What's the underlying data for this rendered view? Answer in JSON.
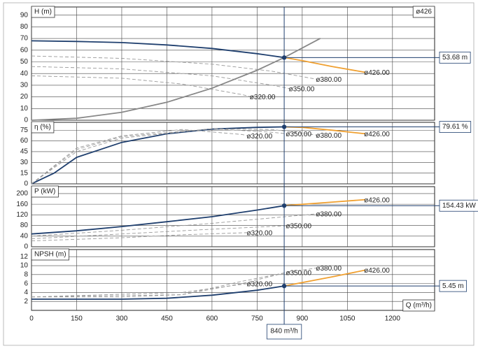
{
  "chart_data": [
    {
      "type": "line",
      "ylabel": "H (m)",
      "corner_label": "ø426",
      "xlim": [
        0,
        1340
      ],
      "ylim": [
        0,
        97
      ],
      "yticks": [
        0,
        10,
        20,
        30,
        40,
        50,
        60,
        70,
        80,
        90
      ],
      "duty": {
        "value": 53.68,
        "label": "53.68 m"
      },
      "series": [
        {
          "color": "#1f3f6e",
          "x": [
            0,
            150,
            300,
            450,
            600,
            750,
            840
          ],
          "values": [
            68,
            67.5,
            66.5,
            64.5,
            61.5,
            57,
            53.68
          ]
        },
        {
          "name": "ø426.00",
          "color": "#f0a030",
          "x": [
            840,
            900,
            1000,
            1110
          ],
          "values": [
            53.68,
            51,
            46,
            41
          ]
        },
        {
          "name": "ø380.00",
          "color": "#999999",
          "dash": true,
          "x": [
            0,
            300,
            600,
            800,
            950
          ],
          "values": [
            55,
            53,
            48,
            42,
            35
          ]
        },
        {
          "name": "ø350.00",
          "color": "#999999",
          "dash": true,
          "x": [
            0,
            300,
            600,
            800,
            860
          ],
          "values": [
            46,
            44,
            38,
            30,
            27
          ]
        },
        {
          "name": "ø320.00",
          "color": "#999999",
          "dash": true,
          "x": [
            0,
            300,
            500,
            700,
            730
          ],
          "values": [
            38,
            36,
            31,
            22,
            20
          ]
        },
        {
          "color": "#888888",
          "x": [
            0,
            150,
            300,
            450,
            600,
            750,
            840,
            960
          ],
          "values": [
            0,
            1.7,
            6.8,
            15.4,
            27.4,
            42.8,
            53.68,
            70.1
          ]
        }
      ]
    },
    {
      "type": "line",
      "ylabel": "η (%)",
      "xlim": [
        0,
        1340
      ],
      "ylim": [
        0,
        86
      ],
      "yticks": [
        0,
        15,
        30,
        45,
        60,
        75
      ],
      "duty": {
        "value": 79.61,
        "label": "79.61 %"
      },
      "series": [
        {
          "color": "#1f3f6e",
          "x": [
            0,
            75,
            150,
            300,
            450,
            600,
            750,
            840
          ],
          "values": [
            0,
            15,
            37,
            58,
            70,
            76.5,
            79,
            79.61
          ]
        },
        {
          "name": "ø426.00",
          "color": "#f0a030",
          "x": [
            840,
            900,
            1000,
            1110
          ],
          "values": [
            79.61,
            79,
            75,
            70
          ]
        },
        {
          "name": "ø380.00",
          "color": "#999999",
          "dash": true,
          "x": [
            0,
            150,
            300,
            600,
            800,
            950
          ],
          "values": [
            0,
            45,
            64,
            77,
            76,
            68
          ]
        },
        {
          "name": "ø350.00",
          "color": "#999999",
          "dash": true,
          "x": [
            0,
            150,
            300,
            600,
            800,
            850
          ],
          "values": [
            0,
            48,
            66,
            77,
            72,
            70
          ]
        },
        {
          "name": "ø320.00",
          "color": "#999999",
          "dash": true,
          "x": [
            0,
            150,
            300,
            500,
            700,
            720
          ],
          "values": [
            0,
            50,
            67,
            76,
            69,
            67
          ]
        }
      ]
    },
    {
      "type": "line",
      "ylabel": "P (kW)",
      "xlim": [
        0,
        1340
      ],
      "ylim": [
        0,
        226
      ],
      "yticks": [
        0,
        40,
        80,
        120,
        160,
        200
      ],
      "duty": {
        "value": 154.43,
        "label": "154.43 kW"
      },
      "series": [
        {
          "color": "#1f3f6e",
          "x": [
            0,
            150,
            300,
            450,
            600,
            750,
            840
          ],
          "values": [
            48,
            60,
            76,
            94,
            113,
            138,
            154.43
          ]
        },
        {
          "name": "ø426.00",
          "color": "#f0a030",
          "x": [
            840,
            1000,
            1110
          ],
          "values": [
            154.43,
            168,
            177
          ]
        },
        {
          "name": "ø380.00",
          "color": "#999999",
          "dash": true,
          "x": [
            0,
            300,
            600,
            950
          ],
          "values": [
            40,
            62,
            88,
            124
          ]
        },
        {
          "name": "ø350.00",
          "color": "#999999",
          "dash": true,
          "x": [
            0,
            300,
            600,
            850
          ],
          "values": [
            30,
            48,
            66,
            79
          ]
        },
        {
          "name": "ø320.00",
          "color": "#999999",
          "dash": true,
          "x": [
            0,
            300,
            500,
            720
          ],
          "values": [
            22,
            34,
            45,
            53
          ]
        }
      ]
    },
    {
      "type": "line",
      "ylabel": "NPSH (m)",
      "xlabel": "Q (m³/h)",
      "xlim": [
        0,
        1340
      ],
      "ylim": [
        0,
        13.6
      ],
      "yticks": [
        2,
        4,
        6,
        8,
        10,
        12
      ],
      "xticks": [
        0,
        150,
        300,
        450,
        600,
        750,
        900,
        1050,
        1200
      ],
      "duty_x": {
        "value": 840,
        "label": "840 m³/h"
      },
      "duty": {
        "value": 5.45,
        "label": "5.45 m"
      },
      "series": [
        {
          "color": "#1f3f6e",
          "x": [
            0,
            300,
            450,
            600,
            750,
            840
          ],
          "values": [
            2.5,
            2.5,
            2.7,
            3.4,
            4.5,
            5.45
          ]
        },
        {
          "name": "ø426.00",
          "color": "#f0a030",
          "x": [
            840,
            1000,
            1110
          ],
          "values": [
            5.45,
            7.5,
            9
          ]
        },
        {
          "name": "ø380.00",
          "color": "#999999",
          "dash": true,
          "x": [
            0,
            300,
            500,
            700,
            850,
            950
          ],
          "values": [
            3,
            3,
            3.5,
            6,
            8.5,
            9.5
          ]
        },
        {
          "name": "ø350.00",
          "color": "#999999",
          "dash": true,
          "x": [
            0,
            500,
            700,
            850
          ],
          "values": [
            3,
            3.5,
            6.5,
            8.5
          ]
        },
        {
          "name": "ø320.00",
          "color": "#999999",
          "dash": true,
          "x": [
            0,
            500,
            720
          ],
          "values": [
            3,
            4,
            6
          ]
        }
      ]
    }
  ]
}
